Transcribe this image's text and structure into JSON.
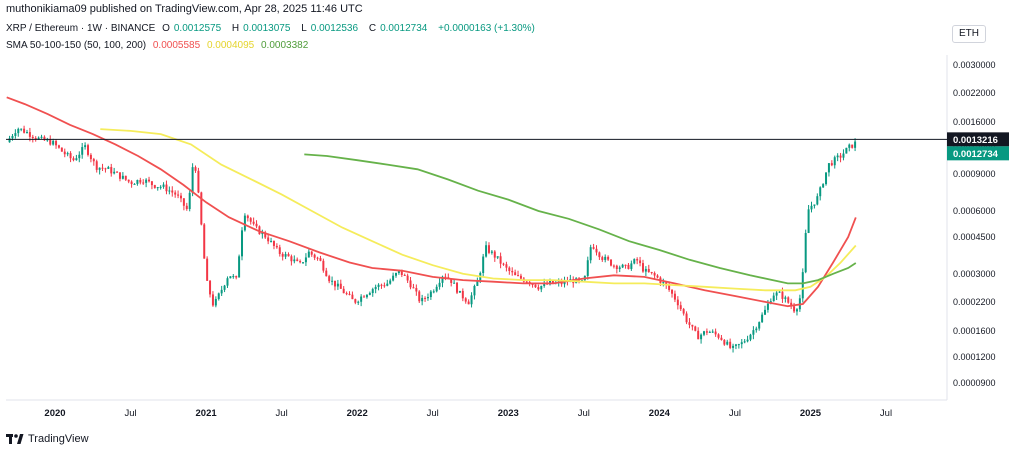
{
  "header": {
    "publisher_text": "muthonikiama09 published on TradingView.com, Apr 28, 2025 11:46 UTC"
  },
  "legend": {
    "symbol": "XRP / Ethereum · 1W · BINANCE",
    "open_label": "O",
    "open": "0.0012575",
    "high_label": "H",
    "high": "0.0013075",
    "low_label": "L",
    "low": "0.0012536",
    "close_label": "C",
    "close": "0.0012734",
    "change": "+0.0000163 (+1.30%)",
    "sma_label": "SMA 50-100-150 (50, 100, 200)",
    "sma_values": [
      "0.0005585",
      "0.0004095",
      "0.0003382"
    ]
  },
  "currency_badge": "ETH",
  "branding": "TradingView",
  "colors": {
    "up": "#089981",
    "down": "#f23645",
    "sma50": "#f05050",
    "sma100": "#f5ec5b",
    "sma200": "#66b24a",
    "crosshair_label_bg": "#131722",
    "last_price_bg": "#089981"
  },
  "chart_data": {
    "type": "candlestick",
    "title": "XRP / Ethereum · 1W · BINANCE",
    "y_scale": "log",
    "y_ticks": [
      0.003,
      0.0022,
      0.0016,
      0.0012,
      0.0009,
      0.0006,
      0.00045,
      0.0003,
      0.00022,
      0.00016,
      0.00012,
      9e-05
    ],
    "y_tick_labels": [
      "0.0030000",
      "0.0022000",
      "0.0016000",
      "0.0012000",
      "0.0009000",
      "0.0006000",
      "0.0004500",
      "0.0003000",
      "0.0002200",
      "0.0001600",
      "0.0001200",
      "0.0000900"
    ],
    "x_ticks": [
      2020.0,
      2020.5,
      2021.0,
      2021.5,
      2022.0,
      2022.5,
      2023.0,
      2023.5,
      2024.0,
      2024.5,
      2025.0,
      2025.5
    ],
    "x_tick_labels": [
      "2020",
      "Jul",
      "2021",
      "Jul",
      "2022",
      "Jul",
      "2023",
      "Jul",
      "2024",
      "Jul",
      "2025",
      "Jul"
    ],
    "crosshair_price": "0.0013216",
    "last_price": "0.0012734",
    "close_path": [
      [
        2019.68,
        0.00128
      ],
      [
        2019.75,
        0.0015
      ],
      [
        2019.82,
        0.00142
      ],
      [
        2019.9,
        0.00132
      ],
      [
        2019.98,
        0.00128
      ],
      [
        2020.05,
        0.00115
      ],
      [
        2020.12,
        0.00105
      ],
      [
        2020.2,
        0.00122
      ],
      [
        2020.27,
        0.00098
      ],
      [
        2020.35,
        0.00095
      ],
      [
        2020.42,
        0.00089
      ],
      [
        2020.5,
        0.00082
      ],
      [
        2020.58,
        0.00085
      ],
      [
        2020.65,
        0.0008
      ],
      [
        2020.72,
        0.00078
      ],
      [
        2020.8,
        0.00072
      ],
      [
        2020.88,
        0.0006
      ],
      [
        2020.92,
        0.00113
      ],
      [
        2020.96,
        0.0006
      ],
      [
        2021.0,
        0.00028
      ],
      [
        2021.05,
        0.00021
      ],
      [
        2021.1,
        0.00025
      ],
      [
        2021.15,
        0.0003
      ],
      [
        2021.2,
        0.00028
      ],
      [
        2021.25,
        0.0006
      ],
      [
        2021.32,
        0.0005
      ],
      [
        2021.4,
        0.00045
      ],
      [
        2021.48,
        0.00038
      ],
      [
        2021.55,
        0.00036
      ],
      [
        2021.62,
        0.00033
      ],
      [
        2021.68,
        0.00038
      ],
      [
        2021.75,
        0.00035
      ],
      [
        2021.82,
        0.00028
      ],
      [
        2021.9,
        0.00025
      ],
      [
        2021.98,
        0.00022
      ],
      [
        2022.05,
        0.00024
      ],
      [
        2022.12,
        0.00026
      ],
      [
        2022.2,
        0.00027
      ],
      [
        2022.28,
        0.00031
      ],
      [
        2022.35,
        0.00027
      ],
      [
        2022.42,
        0.00022
      ],
      [
        2022.5,
        0.00025
      ],
      [
        2022.57,
        0.0003
      ],
      [
        2022.62,
        0.00028
      ],
      [
        2022.68,
        0.00024
      ],
      [
        2022.74,
        0.00022
      ],
      [
        2022.8,
        0.00028
      ],
      [
        2022.85,
        0.0004
      ],
      [
        2022.92,
        0.00036
      ],
      [
        2022.98,
        0.00032
      ],
      [
        2023.05,
        0.00029
      ],
      [
        2023.12,
        0.00028
      ],
      [
        2023.2,
        0.00026
      ],
      [
        2023.28,
        0.00027
      ],
      [
        2023.35,
        0.00027
      ],
      [
        2023.42,
        0.00028
      ],
      [
        2023.5,
        0.00027
      ],
      [
        2023.55,
        0.00042
      ],
      [
        2023.62,
        0.00036
      ],
      [
        2023.7,
        0.00033
      ],
      [
        2023.78,
        0.00032
      ],
      [
        2023.85,
        0.00035
      ],
      [
        2023.9,
        0.00031
      ],
      [
        2023.98,
        0.00029
      ],
      [
        2024.05,
        0.00026
      ],
      [
        2024.12,
        0.00022
      ],
      [
        2024.18,
        0.00018
      ],
      [
        2024.25,
        0.00015
      ],
      [
        2024.32,
        0.00016
      ],
      [
        2024.4,
        0.00015
      ],
      [
        2024.48,
        0.00013
      ],
      [
        2024.55,
        0.00014
      ],
      [
        2024.62,
        0.00016
      ],
      [
        2024.7,
        0.0002
      ],
      [
        2024.75,
        0.00024
      ],
      [
        2024.8,
        0.00024
      ],
      [
        2024.85,
        0.00022
      ],
      [
        2024.9,
        0.0002
      ],
      [
        2024.94,
        0.00024
      ],
      [
        2024.98,
        0.0006
      ],
      [
        2025.05,
        0.0007
      ],
      [
        2025.12,
        0.001
      ],
      [
        2025.2,
        0.0011
      ],
      [
        2025.25,
        0.0012
      ],
      [
        2025.3,
        0.001273
      ]
    ],
    "series": [
      {
        "name": "SMA 50",
        "color": "#f05050",
        "points": [
          [
            2019.68,
            0.0021
          ],
          [
            2019.8,
            0.00195
          ],
          [
            2019.95,
            0.00175
          ],
          [
            2020.1,
            0.00155
          ],
          [
            2020.25,
            0.0014
          ],
          [
            2020.4,
            0.00125
          ],
          [
            2020.55,
            0.0011
          ],
          [
            2020.7,
            0.00095
          ],
          [
            2020.85,
            0.0008
          ],
          [
            2021.0,
            0.00066
          ],
          [
            2021.15,
            0.00056
          ],
          [
            2021.35,
            0.00048
          ],
          [
            2021.55,
            0.00043
          ],
          [
            2021.75,
            0.00038
          ],
          [
            2021.95,
            0.00034
          ],
          [
            2022.1,
            0.00032
          ],
          [
            2022.3,
            0.00031
          ],
          [
            2022.5,
            0.00029
          ],
          [
            2022.7,
            0.00028
          ],
          [
            2022.9,
            0.000275
          ],
          [
            2023.1,
            0.00027
          ],
          [
            2023.3,
            0.00027
          ],
          [
            2023.5,
            0.000285
          ],
          [
            2023.7,
            0.000295
          ],
          [
            2023.9,
            0.00029
          ],
          [
            2024.1,
            0.00027
          ],
          [
            2024.3,
            0.00025
          ],
          [
            2024.5,
            0.000235
          ],
          [
            2024.7,
            0.00022
          ],
          [
            2024.85,
            0.00021
          ],
          [
            2024.95,
            0.000215
          ],
          [
            2025.05,
            0.00026
          ],
          [
            2025.15,
            0.00034
          ],
          [
            2025.25,
            0.00045
          ],
          [
            2025.3,
            0.000559
          ]
        ]
      },
      {
        "name": "SMA 100",
        "color": "#f5ec5b",
        "points": [
          [
            2020.3,
            0.00148
          ],
          [
            2020.5,
            0.00145
          ],
          [
            2020.7,
            0.0014
          ],
          [
            2020.9,
            0.00125
          ],
          [
            2021.1,
            0.001
          ],
          [
            2021.3,
            0.00085
          ],
          [
            2021.5,
            0.00072
          ],
          [
            2021.7,
            0.0006
          ],
          [
            2021.9,
            0.0005
          ],
          [
            2022.1,
            0.00043
          ],
          [
            2022.3,
            0.00037
          ],
          [
            2022.5,
            0.00033
          ],
          [
            2022.7,
            0.0003
          ],
          [
            2022.9,
            0.000285
          ],
          [
            2023.1,
            0.00028
          ],
          [
            2023.3,
            0.00028
          ],
          [
            2023.5,
            0.000275
          ],
          [
            2023.7,
            0.00027
          ],
          [
            2023.9,
            0.00027
          ],
          [
            2024.1,
            0.000265
          ],
          [
            2024.3,
            0.00026
          ],
          [
            2024.5,
            0.000255
          ],
          [
            2024.7,
            0.00025
          ],
          [
            2024.9,
            0.00025
          ],
          [
            2025.0,
            0.00026
          ],
          [
            2025.1,
            0.00029
          ],
          [
            2025.2,
            0.00034
          ],
          [
            2025.3,
            0.00041
          ]
        ]
      },
      {
        "name": "SMA 200",
        "color": "#66b24a",
        "points": [
          [
            2021.65,
            0.00112
          ],
          [
            2021.8,
            0.0011
          ],
          [
            2022.0,
            0.00105
          ],
          [
            2022.2,
            0.001
          ],
          [
            2022.4,
            0.00095
          ],
          [
            2022.6,
            0.00085
          ],
          [
            2022.8,
            0.00075
          ],
          [
            2023.0,
            0.00068
          ],
          [
            2023.2,
            0.0006
          ],
          [
            2023.4,
            0.00055
          ],
          [
            2023.6,
            0.00049
          ],
          [
            2023.8,
            0.00043
          ],
          [
            2024.0,
            0.00039
          ],
          [
            2024.2,
            0.00035
          ],
          [
            2024.4,
            0.00032
          ],
          [
            2024.6,
            0.000295
          ],
          [
            2024.75,
            0.00028
          ],
          [
            2024.85,
            0.00027
          ],
          [
            2024.95,
            0.00027
          ],
          [
            2025.05,
            0.00028
          ],
          [
            2025.15,
            0.0003
          ],
          [
            2025.25,
            0.00032
          ],
          [
            2025.3,
            0.000338
          ]
        ]
      }
    ]
  }
}
